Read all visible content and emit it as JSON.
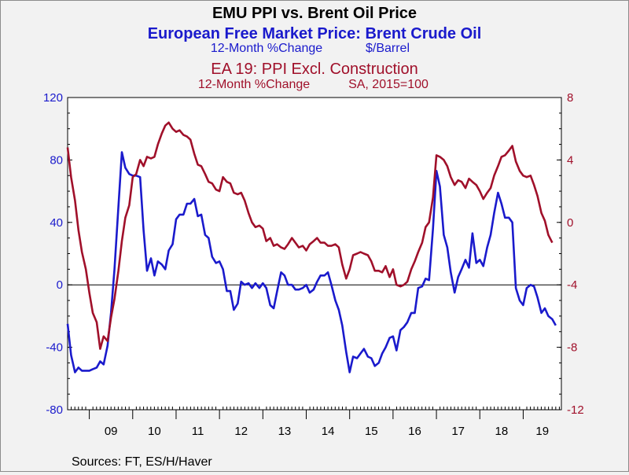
{
  "header": {
    "title": "EMU PPI vs. Brent Oil Price",
    "series1_name": "European Free Market Price: Brent Crude Oil",
    "series1_units_a": "12-Month %Change",
    "series1_units_b": "$/Barrel",
    "series2_name": "EA 19: PPI Excl. Construction",
    "series2_units_a": "12-Month %Change",
    "series2_units_b": "SA, 2015=100"
  },
  "footer": {
    "sources": "Sources:  FT, ES/H/Haver"
  },
  "colors": {
    "oil": "#1a1acc",
    "ppi": "#a0102a",
    "axis": "#000000",
    "bg": "#f2f2f2",
    "plot_bg": "#ffffff"
  },
  "chart_data": {
    "type": "line",
    "x_unit": "year-fraction",
    "x_range": [
      2008.5,
      2019.88
    ],
    "year_labels": [
      "09",
      "10",
      "11",
      "12",
      "13",
      "14",
      "15",
      "16",
      "17",
      "18",
      "19"
    ],
    "left_axis": {
      "range": [
        -80,
        120
      ],
      "ticks": [
        "-80",
        "-40",
        "0",
        "40",
        "80",
        "120"
      ]
    },
    "right_axis": {
      "range": [
        -12,
        8
      ],
      "ticks": [
        "-12",
        "-8",
        "-4",
        "0",
        "4",
        "8"
      ]
    },
    "reference_line_left": 0,
    "series": [
      {
        "name": "European Free Market Price: Brent Crude Oil",
        "axis": "left",
        "color": "#1a1acc",
        "points": [
          [
            2008.5,
            -25
          ],
          [
            2008.58,
            -45
          ],
          [
            2008.67,
            -56
          ],
          [
            2008.75,
            -53
          ],
          [
            2008.83,
            -55
          ],
          [
            2008.92,
            -55
          ],
          [
            2009.0,
            -55
          ],
          [
            2009.08,
            -54
          ],
          [
            2009.17,
            -53
          ],
          [
            2009.25,
            -49
          ],
          [
            2009.33,
            -51
          ],
          [
            2009.42,
            -39
          ],
          [
            2009.5,
            -18
          ],
          [
            2009.58,
            10
          ],
          [
            2009.67,
            50
          ],
          [
            2009.75,
            85
          ],
          [
            2009.83,
            75
          ],
          [
            2009.92,
            71
          ],
          [
            2010.0,
            70
          ],
          [
            2010.08,
            70
          ],
          [
            2010.17,
            69
          ],
          [
            2010.25,
            35
          ],
          [
            2010.33,
            9
          ],
          [
            2010.42,
            17
          ],
          [
            2010.5,
            6
          ],
          [
            2010.58,
            15
          ],
          [
            2010.67,
            13
          ],
          [
            2010.75,
            10
          ],
          [
            2010.83,
            22
          ],
          [
            2010.92,
            26
          ],
          [
            2011.0,
            42
          ],
          [
            2011.08,
            45
          ],
          [
            2011.17,
            45
          ],
          [
            2011.25,
            52
          ],
          [
            2011.33,
            52
          ],
          [
            2011.42,
            55
          ],
          [
            2011.5,
            44
          ],
          [
            2011.58,
            45
          ],
          [
            2011.67,
            32
          ],
          [
            2011.75,
            30
          ],
          [
            2011.83,
            18
          ],
          [
            2011.92,
            14
          ],
          [
            2012.0,
            15
          ],
          [
            2012.08,
            10
          ],
          [
            2012.17,
            -4
          ],
          [
            2012.25,
            -4
          ],
          [
            2012.33,
            -16
          ],
          [
            2012.42,
            -12
          ],
          [
            2012.5,
            2
          ],
          [
            2012.58,
            0
          ],
          [
            2012.67,
            1
          ],
          [
            2012.75,
            -2
          ],
          [
            2012.83,
            1
          ],
          [
            2012.92,
            -2
          ],
          [
            2013.0,
            1
          ],
          [
            2013.08,
            -2
          ],
          [
            2013.17,
            -13
          ],
          [
            2013.25,
            -15
          ],
          [
            2013.33,
            -4
          ],
          [
            2013.42,
            8
          ],
          [
            2013.5,
            6
          ],
          [
            2013.58,
            0
          ],
          [
            2013.67,
            0
          ],
          [
            2013.75,
            -3
          ],
          [
            2013.83,
            -3
          ],
          [
            2013.92,
            -2
          ],
          [
            2014.0,
            0
          ],
          [
            2014.08,
            -5
          ],
          [
            2014.17,
            -3
          ],
          [
            2014.25,
            2
          ],
          [
            2014.33,
            6
          ],
          [
            2014.42,
            6
          ],
          [
            2014.5,
            8
          ],
          [
            2014.58,
            0
          ],
          [
            2014.67,
            -10
          ],
          [
            2014.75,
            -16
          ],
          [
            2014.83,
            -26
          ],
          [
            2014.92,
            -43
          ],
          [
            2015.0,
            -56
          ],
          [
            2015.08,
            -46
          ],
          [
            2015.17,
            -47
          ],
          [
            2015.25,
            -44
          ],
          [
            2015.33,
            -41
          ],
          [
            2015.42,
            -46
          ],
          [
            2015.5,
            -47
          ],
          [
            2015.58,
            -52
          ],
          [
            2015.67,
            -50
          ],
          [
            2015.75,
            -44
          ],
          [
            2015.83,
            -40
          ],
          [
            2015.92,
            -34
          ],
          [
            2016.0,
            -33
          ],
          [
            2016.08,
            -42
          ],
          [
            2016.17,
            -29
          ],
          [
            2016.25,
            -27
          ],
          [
            2016.33,
            -24
          ],
          [
            2016.42,
            -18
          ],
          [
            2016.5,
            -18
          ],
          [
            2016.58,
            -2
          ],
          [
            2016.67,
            -1
          ],
          [
            2016.75,
            4
          ],
          [
            2016.83,
            3
          ],
          [
            2016.92,
            36
          ],
          [
            2017.0,
            73
          ],
          [
            2017.08,
            63
          ],
          [
            2017.17,
            32
          ],
          [
            2017.25,
            24
          ],
          [
            2017.33,
            8
          ],
          [
            2017.42,
            -5
          ],
          [
            2017.5,
            5
          ],
          [
            2017.58,
            10
          ],
          [
            2017.67,
            16
          ],
          [
            2017.75,
            11
          ],
          [
            2017.83,
            33
          ],
          [
            2017.92,
            14
          ],
          [
            2018.0,
            16
          ],
          [
            2018.08,
            12
          ],
          [
            2018.17,
            24
          ],
          [
            2018.25,
            32
          ],
          [
            2018.33,
            46
          ],
          [
            2018.42,
            59
          ],
          [
            2018.5,
            52
          ],
          [
            2018.58,
            43
          ],
          [
            2018.67,
            43
          ],
          [
            2018.75,
            40
          ],
          [
            2018.83,
            -2
          ],
          [
            2018.92,
            -10
          ],
          [
            2019.0,
            -13
          ],
          [
            2019.08,
            -2
          ],
          [
            2019.17,
            0
          ],
          [
            2019.25,
            -1
          ],
          [
            2019.33,
            -8
          ],
          [
            2019.42,
            -18
          ],
          [
            2019.5,
            -15
          ],
          [
            2019.58,
            -20
          ],
          [
            2019.67,
            -22
          ],
          [
            2019.75,
            -26
          ]
        ]
      },
      {
        "name": "EA 19: PPI Excl. Construction",
        "axis": "right",
        "color": "#a0102a",
        "points": [
          [
            2008.5,
            4.8
          ],
          [
            2008.58,
            2.9
          ],
          [
            2008.67,
            1.4
          ],
          [
            2008.75,
            -0.5
          ],
          [
            2008.83,
            -1.9
          ],
          [
            2008.92,
            -3.0
          ],
          [
            2009.0,
            -4.5
          ],
          [
            2009.08,
            -5.8
          ],
          [
            2009.17,
            -6.4
          ],
          [
            2009.25,
            -8.1
          ],
          [
            2009.33,
            -7.3
          ],
          [
            2009.42,
            -7.6
          ],
          [
            2009.5,
            -6.1
          ],
          [
            2009.58,
            -4.9
          ],
          [
            2009.67,
            -3.1
          ],
          [
            2009.75,
            -1.2
          ],
          [
            2009.83,
            0.3
          ],
          [
            2009.92,
            1.1
          ],
          [
            2010.0,
            2.9
          ],
          [
            2010.08,
            3.1
          ],
          [
            2010.17,
            4.0
          ],
          [
            2010.25,
            3.6
          ],
          [
            2010.33,
            4.2
          ],
          [
            2010.42,
            4.1
          ],
          [
            2010.5,
            4.2
          ],
          [
            2010.58,
            5.0
          ],
          [
            2010.67,
            5.7
          ],
          [
            2010.75,
            6.2
          ],
          [
            2010.83,
            6.4
          ],
          [
            2010.92,
            6.0
          ],
          [
            2011.0,
            5.8
          ],
          [
            2011.08,
            5.9
          ],
          [
            2011.17,
            5.6
          ],
          [
            2011.25,
            5.5
          ],
          [
            2011.33,
            5.3
          ],
          [
            2011.42,
            4.4
          ],
          [
            2011.5,
            3.7
          ],
          [
            2011.58,
            3.6
          ],
          [
            2011.67,
            3.1
          ],
          [
            2011.75,
            2.6
          ],
          [
            2011.83,
            2.5
          ],
          [
            2011.92,
            2.1
          ],
          [
            2012.0,
            2.0
          ],
          [
            2012.08,
            2.9
          ],
          [
            2012.17,
            2.6
          ],
          [
            2012.25,
            2.5
          ],
          [
            2012.33,
            1.9
          ],
          [
            2012.42,
            1.8
          ],
          [
            2012.5,
            1.9
          ],
          [
            2012.58,
            1.4
          ],
          [
            2012.67,
            0.6
          ],
          [
            2012.75,
            0.0
          ],
          [
            2012.83,
            -0.3
          ],
          [
            2012.92,
            -0.2
          ],
          [
            2013.0,
            -0.4
          ],
          [
            2013.08,
            -1.2
          ],
          [
            2013.17,
            -1.0
          ],
          [
            2013.25,
            -1.5
          ],
          [
            2013.33,
            -1.4
          ],
          [
            2013.42,
            -1.6
          ],
          [
            2013.5,
            -1.7
          ],
          [
            2013.58,
            -1.4
          ],
          [
            2013.67,
            -1.0
          ],
          [
            2013.75,
            -1.3
          ],
          [
            2013.83,
            -1.6
          ],
          [
            2013.92,
            -1.5
          ],
          [
            2014.0,
            -1.8
          ],
          [
            2014.08,
            -1.4
          ],
          [
            2014.17,
            -1.2
          ],
          [
            2014.25,
            -1.0
          ],
          [
            2014.33,
            -1.3
          ],
          [
            2014.42,
            -1.3
          ],
          [
            2014.5,
            -1.5
          ],
          [
            2014.58,
            -1.5
          ],
          [
            2014.67,
            -1.4
          ],
          [
            2014.75,
            -1.6
          ],
          [
            2014.83,
            -2.7
          ],
          [
            2014.92,
            -3.6
          ],
          [
            2015.0,
            -3.0
          ],
          [
            2015.08,
            -2.1
          ],
          [
            2015.17,
            -2.0
          ],
          [
            2015.25,
            -1.9
          ],
          [
            2015.33,
            -2.0
          ],
          [
            2015.42,
            -2.1
          ],
          [
            2015.5,
            -2.5
          ],
          [
            2015.58,
            -3.1
          ],
          [
            2015.67,
            -3.1
          ],
          [
            2015.75,
            -3.2
          ],
          [
            2015.83,
            -2.8
          ],
          [
            2015.92,
            -3.5
          ],
          [
            2016.0,
            -3.0
          ],
          [
            2016.08,
            -4.0
          ],
          [
            2016.17,
            -4.1
          ],
          [
            2016.25,
            -4.0
          ],
          [
            2016.33,
            -3.8
          ],
          [
            2016.42,
            -3.0
          ],
          [
            2016.5,
            -2.5
          ],
          [
            2016.58,
            -1.9
          ],
          [
            2016.67,
            -1.3
          ],
          [
            2016.75,
            -0.3
          ],
          [
            2016.83,
            0.0
          ],
          [
            2016.92,
            1.6
          ],
          [
            2017.0,
            4.3
          ],
          [
            2017.08,
            4.2
          ],
          [
            2017.17,
            4.0
          ],
          [
            2017.25,
            3.6
          ],
          [
            2017.33,
            2.9
          ],
          [
            2017.42,
            2.4
          ],
          [
            2017.5,
            2.7
          ],
          [
            2017.58,
            2.6
          ],
          [
            2017.67,
            2.2
          ],
          [
            2017.75,
            2.8
          ],
          [
            2017.83,
            2.6
          ],
          [
            2017.92,
            2.4
          ],
          [
            2018.0,
            2.0
          ],
          [
            2018.08,
            1.5
          ],
          [
            2018.17,
            1.9
          ],
          [
            2018.25,
            2.2
          ],
          [
            2018.33,
            3.0
          ],
          [
            2018.42,
            3.6
          ],
          [
            2018.5,
            4.2
          ],
          [
            2018.58,
            4.3
          ],
          [
            2018.67,
            4.6
          ],
          [
            2018.75,
            4.9
          ],
          [
            2018.83,
            3.9
          ],
          [
            2018.92,
            3.3
          ],
          [
            2019.0,
            3.0
          ],
          [
            2019.08,
            2.9
          ],
          [
            2019.17,
            3.0
          ],
          [
            2019.25,
            2.4
          ],
          [
            2019.33,
            1.7
          ],
          [
            2019.42,
            0.6
          ],
          [
            2019.5,
            0.1
          ],
          [
            2019.58,
            -0.8
          ],
          [
            2019.67,
            -1.3
          ]
        ]
      }
    ]
  }
}
